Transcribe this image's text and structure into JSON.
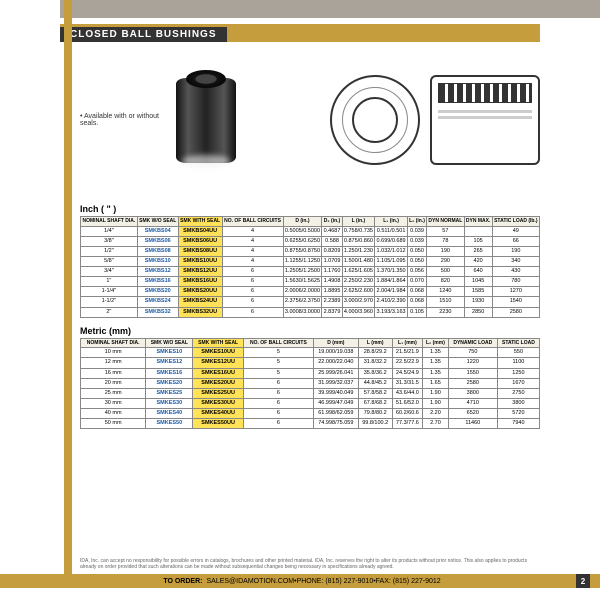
{
  "header": {
    "title": "CLOSED BALL BUSHINGS"
  },
  "product": {
    "note": "• Available with or without seals."
  },
  "inch": {
    "title": "Inch ( \" )",
    "columns": [
      "NOMINAL SHAFT DIA.",
      "SMK W/O SEAL",
      "SMK WITH SEAL",
      "NO. OF BALL CIRCUITS",
      "D (in.)",
      "D₂ (in.)",
      "L (in.)",
      "L₁ (in.)",
      "L₂ (in.)",
      "DYN NORMAL",
      "DYN MAX.",
      "STATIC LOAD (lb.)"
    ],
    "rows": [
      [
        "1/4\"",
        "SMKBS04",
        "SMKBS04UU",
        "4",
        "0.5005/0.5000",
        "0.4687",
        "0.758/0.735",
        "0.511/0.501",
        "0.039",
        "57",
        "",
        "49"
      ],
      [
        "3/8\"",
        "SMKBS06",
        "SMKBS06UU",
        "4",
        "0.6255/0.6250",
        "0.588",
        "0.875/0.860",
        "0.699/0.689",
        "0.039",
        "78",
        "105",
        "66"
      ],
      [
        "1/2\"",
        "SMKBS08",
        "SMKBS08UU",
        "4",
        "0.8755/0.8750",
        "0.8209",
        "1.250/1.230",
        "1.032/1.012",
        "0.050",
        "190",
        "265",
        "190"
      ],
      [
        "5/8\"",
        "SMKBS10",
        "SMKBS10UU",
        "4",
        "1.1255/1.1250",
        "1.0709",
        "1.500/1.480",
        "1.105/1.095",
        "0.050",
        "290",
        "420",
        "340"
      ],
      [
        "3/4\"",
        "SMKBS12",
        "SMKBS12UU",
        "6",
        "1.2505/1.2500",
        "1.1760",
        "1.625/1.605",
        "1.370/1.350",
        "0.056",
        "500",
        "640",
        "430"
      ],
      [
        "1\"",
        "SMKBS16",
        "SMKBS16UU",
        "6",
        "1.5630/1.5625",
        "1.4908",
        "2.250/2.230",
        "1.884/1.864",
        "0.070",
        "820",
        "1045",
        "780"
      ],
      [
        "1-1/4\"",
        "SMKBS20",
        "SMKBS20UU",
        "6",
        "2.0006/2.0000",
        "1.8895",
        "2.625/2.600",
        "2.004/1.984",
        "0.068",
        "1240",
        "1585",
        "1270"
      ],
      [
        "1-1/2\"",
        "SMKBS24",
        "SMKBS24UU",
        "6",
        "2.3756/2.3750",
        "2.2389",
        "3.000/2.970",
        "2.410/2.390",
        "0.068",
        "1510",
        "1930",
        "1540"
      ],
      [
        "2\"",
        "SMKBS32",
        "SMKBS32UU",
        "6",
        "3.0008/3.0000",
        "2.8379",
        "4.000/3.960",
        "3.193/3.163",
        "0.105",
        "2230",
        "2850",
        "2580"
      ]
    ]
  },
  "metric": {
    "title": "Metric (mm)",
    "columns": [
      "NOMINAL SHAFT DIA.",
      "SMK W/O SEAL",
      "SMK WITH SEAL",
      "NO. OF BALL CIRCUITS",
      "D (mm)",
      "L (mm)",
      "L₁ (mm)",
      "L₂ (mm)",
      "DYNAMIC LOAD",
      "STATIC LOAD"
    ],
    "rows": [
      [
        "10 mm",
        "SMKES10",
        "SMKES10UU",
        "5",
        "19.000/19.038",
        "28.8/29.2",
        "21.5/21.9",
        "1.35",
        "750",
        "550"
      ],
      [
        "12 mm",
        "SMKES12",
        "SMKES12UU",
        "5",
        "22.000/22.040",
        "31.8/32.2",
        "22.5/22.9",
        "1.35",
        "1220",
        "1100"
      ],
      [
        "16 mm",
        "SMKES16",
        "SMKES16UU",
        "5",
        "25.999/26.041",
        "35.8/36.2",
        "24.5/24.9",
        "1.35",
        "1550",
        "1250"
      ],
      [
        "20 mm",
        "SMKES20",
        "SMKES20UU",
        "6",
        "31.999/32.037",
        "44.8/45.2",
        "31.3/31.5",
        "1.65",
        "2580",
        "1670"
      ],
      [
        "25 mm",
        "SMKES25",
        "SMKES25UU",
        "6",
        "39.999/40.049",
        "57.8/58.2",
        "43.6/44.0",
        "1.90",
        "3800",
        "2750"
      ],
      [
        "30 mm",
        "SMKES30",
        "SMKES30UU",
        "6",
        "46.999/47.049",
        "67.8/68.2",
        "51.6/52.0",
        "1.90",
        "4710",
        "3800"
      ],
      [
        "40 mm",
        "SMKES40",
        "SMKES40UU",
        "6",
        "61.998/62.059",
        "79.8/80.2",
        "60.2/60.6",
        "2.20",
        "6520",
        "5720"
      ],
      [
        "50 mm",
        "SMKES50",
        "SMKES50UU",
        "6",
        "74.998/75.059",
        "99.8/100.2",
        "77.3/77.6",
        "2.70",
        "11460",
        "7940"
      ]
    ]
  },
  "footer": {
    "disclaimer": "IDA, Inc. can accept no responsibility for possible errors in catalogs, brochures and other printed material. IDA, Inc. reserves the right to alter its products without prior notice. This also applies to products already on order provided that such alterations can be made without subsequential changes being necessary in specifications already agreed.",
    "order": "TO ORDER:",
    "email": "SALES@IDAMOTION.COM",
    "phone": "PHONE: (815) 227-9010",
    "fax": "FAX: (815) 227-9012",
    "page": "2"
  },
  "colors": {
    "accent": "#c59d3d",
    "headerGrey": "#a9a39a",
    "highlight": "#ffe257",
    "link": "#1b5aa6"
  }
}
